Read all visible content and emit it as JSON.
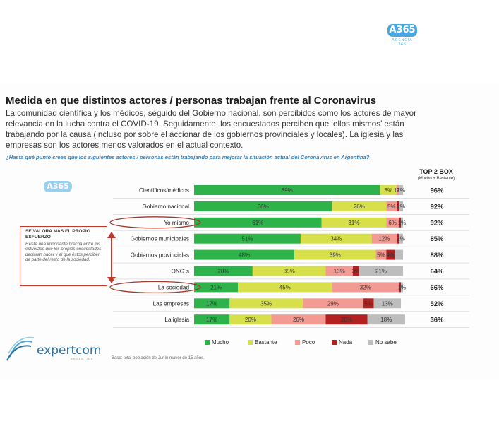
{
  "watermark": {
    "text": "A365",
    "subtitle": "AGENCIA 365"
  },
  "slide": {
    "title": "Medida en que distintos actores / personas trabajan frente al Coronavirus",
    "intro": "La comunidad científica y los médicos, seguido del Gobierno nacional, son percibidos como los actores de mayor relevancia en la lucha contra el COVID-19. Seguidamente, los encuestados perciben que ‘ellos mismos’ están trabajando por la causa (incluso por sobre el accionar de los gobiernos provinciales y locales). La iglesia y las empresas son los actores menos valorados en el actual contexto.",
    "question": "¿Hasta qué punto crees que los siguientes actores / personas están trabajando para mejorar la situación actual del Coronavirus en Argentina?",
    "top2_header": "TOP 2 BOX",
    "top2_sub": "(Mucho + Bastante)",
    "side_title": "SE VALORA MÁS EL PROPIO ESFUERZO",
    "side_body": "Existe una importante brecha entre los esfuerzos que los propios encuestados declaran hacer y el que éstos perciben de parte del resto de la sociedad.",
    "logo": "expertcom",
    "logo_sub": "ARGENTINA",
    "base": "Base: total población de Junín mayor de 15 años."
  },
  "chart_data": {
    "type": "bar",
    "orientation": "horizontal",
    "stacked": true,
    "categories": [
      "Científicos/médicos",
      "Gobierno nacional",
      "Yo mismo",
      "Gobiernos municipales",
      "Gobiernos provinciales",
      "ONG´s",
      "La sociedad",
      "Las empresas",
      "La iglesia"
    ],
    "series": [
      {
        "name": "Mucho",
        "color": "#2db34a",
        "values": [
          89,
          66,
          61,
          51,
          48,
          28,
          21,
          17,
          17
        ]
      },
      {
        "name": "Bastante",
        "color": "#d7e04a",
        "values": [
          8,
          26,
          31,
          34,
          39,
          35,
          45,
          35,
          20
        ]
      },
      {
        "name": "Poco",
        "color": "#f39a93",
        "values": [
          1,
          5,
          6,
          12,
          5,
          13,
          32,
          29,
          26
        ]
      },
      {
        "name": "Nada",
        "color": "#b22020",
        "values": [
          0,
          1,
          1,
          1,
          4,
          3,
          1,
          5,
          20
        ]
      },
      {
        "name": "No sabe",
        "color": "#bdbdbd",
        "values": [
          2,
          2,
          1,
          2,
          4,
          21,
          1,
          13,
          18
        ]
      }
    ],
    "labels": [
      [
        "89%",
        "8%",
        "1%",
        "",
        "2%"
      ],
      [
        "66%",
        "26%",
        "5%",
        "",
        "2%"
      ],
      [
        "61%",
        "31%",
        "6%",
        "",
        "1%"
      ],
      [
        "51%",
        "34%",
        "12%",
        "",
        "2%"
      ],
      [
        "48%",
        "39%",
        "5%",
        "4%",
        ""
      ],
      [
        "28%",
        "35%",
        "13%",
        "3%",
        "21%"
      ],
      [
        "21%",
        "45%",
        "32%",
        "",
        "1%"
      ],
      [
        "17%",
        "35%",
        "29%",
        "5%",
        "13%"
      ],
      [
        "17%",
        "20%",
        "26%",
        "20%",
        "18%"
      ]
    ],
    "top2_box": [
      "96%",
      "92%",
      "92%",
      "85%",
      "88%",
      "64%",
      "66%",
      "52%",
      "36%"
    ],
    "highlighted": [
      "Yo mismo",
      "La sociedad"
    ],
    "xlim": [
      0,
      100
    ],
    "legend_position": "bottom"
  }
}
